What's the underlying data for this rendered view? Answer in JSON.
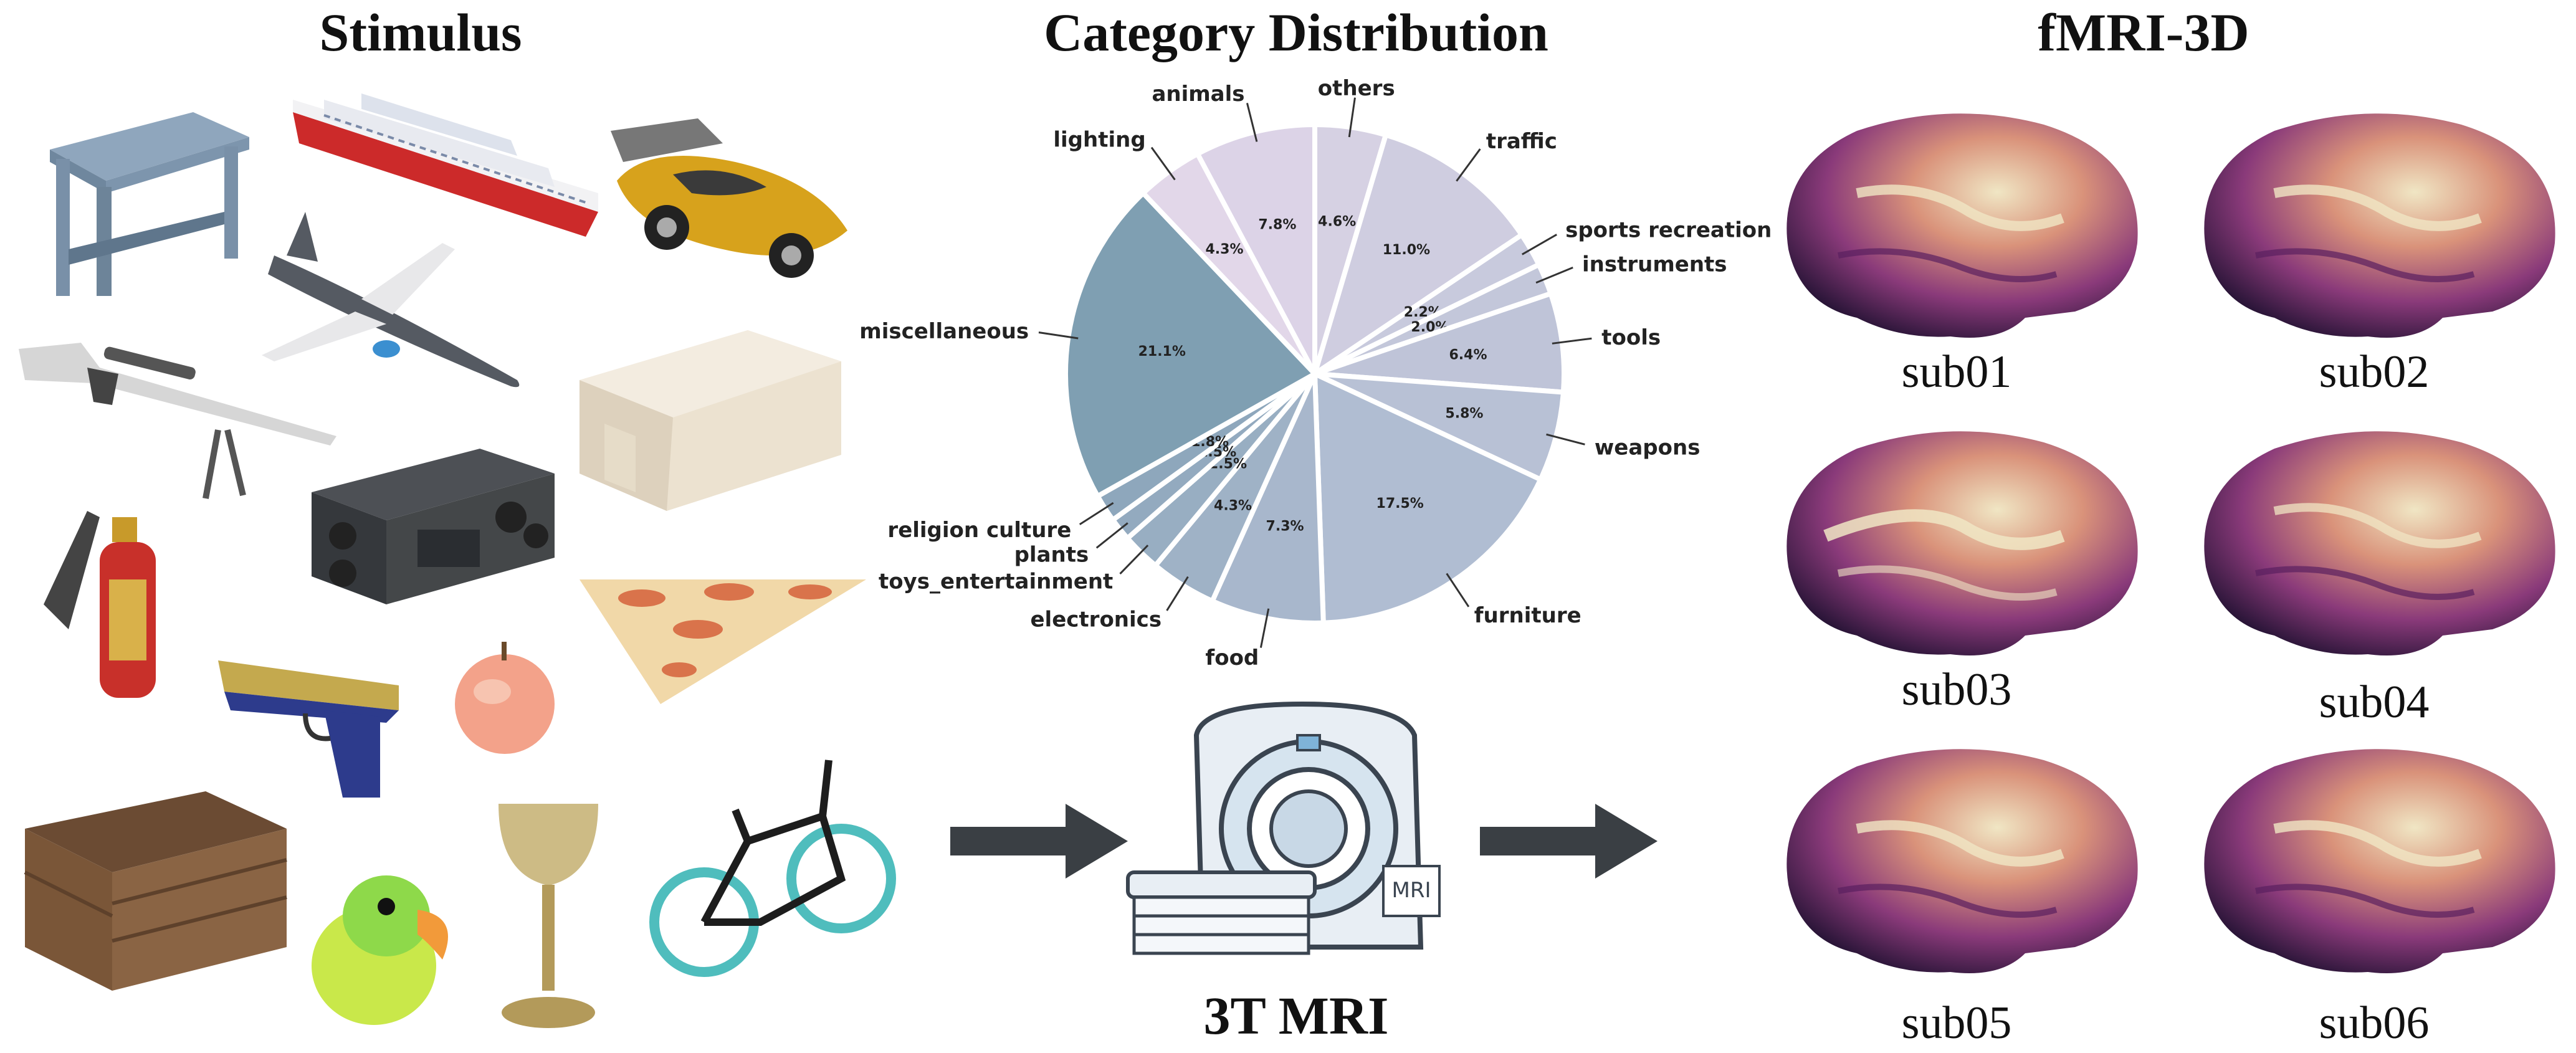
{
  "titles": {
    "stimulus": "Stimulus",
    "distribution": "Category Distribution",
    "fmri": "fMRI-3D",
    "scanner": "3T MRI"
  },
  "scanner": {
    "badge": "MRI"
  },
  "subjects": [
    "sub01",
    "sub02",
    "sub03",
    "sub04",
    "sub05",
    "sub06"
  ],
  "stimulus_objects": [
    "table-icon",
    "cruise-ship-icon",
    "race-car-icon",
    "airplane-icon",
    "sniper-rifle-icon",
    "sofa-icon",
    "stereo-speakers-icon",
    "fire-extinguisher-icon",
    "pizza-icon",
    "pistol-icon",
    "apple-icon",
    "wooden-crate-icon",
    "parrot-toy-icon",
    "goblet-icon",
    "bicycle-icon"
  ],
  "colors": {
    "arrow": "#3a3f44",
    "pie_edge": "#ffffff",
    "brain_dark": "#2a1538",
    "brain_mid": "#8a3a7a",
    "brain_light": "#f0e6c4"
  },
  "chart_data": {
    "type": "pie",
    "title": "Category Distribution",
    "start_angle_deg": 90,
    "direction": "clockwise",
    "slices": [
      {
        "label": "others",
        "value": 4.6,
        "pct": "4.6%",
        "color": "#d6d1e3"
      },
      {
        "label": "traffic",
        "value": 11.0,
        "pct": "11.0%",
        "color": "#cfcde0"
      },
      {
        "label": "sports recreation",
        "value": 2.2,
        "pct": "2.2%",
        "color": "#c8cadd"
      },
      {
        "label": "instruments",
        "value": 2.0,
        "pct": "2.0%",
        "color": "#c3c7da"
      },
      {
        "label": "tools",
        "value": 6.4,
        "pct": "6.4%",
        "color": "#bfc4d8"
      },
      {
        "label": "weapons",
        "value": 5.8,
        "pct": "5.8%",
        "color": "#b8c1d5"
      },
      {
        "label": "furniture",
        "value": 17.5,
        "pct": "17.5%",
        "color": "#b0bdd2"
      },
      {
        "label": "food",
        "value": 7.3,
        "pct": "7.3%",
        "color": "#a8b7cc"
      },
      {
        "label": "electronics",
        "value": 4.3,
        "pct": "4.3%",
        "color": "#9fb2c6"
      },
      {
        "label": "toys_entertainment",
        "value": 2.5,
        "pct": "2.5%",
        "color": "#98aec2"
      },
      {
        "label": "plants",
        "value": 1.5,
        "pct": "1.5%",
        "color": "#93aabf"
      },
      {
        "label": "religion culture",
        "value": 1.8,
        "pct": "1.8%",
        "color": "#8ea7bc"
      },
      {
        "label": "miscellaneous",
        "value": 21.1,
        "pct": "21.1%",
        "color": "#7f9fb2"
      },
      {
        "label": "lighting",
        "value": 4.3,
        "pct": "4.3%",
        "color": "#e2d7e9"
      },
      {
        "label": "animals",
        "value": 7.8,
        "pct": "7.8%",
        "color": "#dcd3e7"
      }
    ]
  }
}
